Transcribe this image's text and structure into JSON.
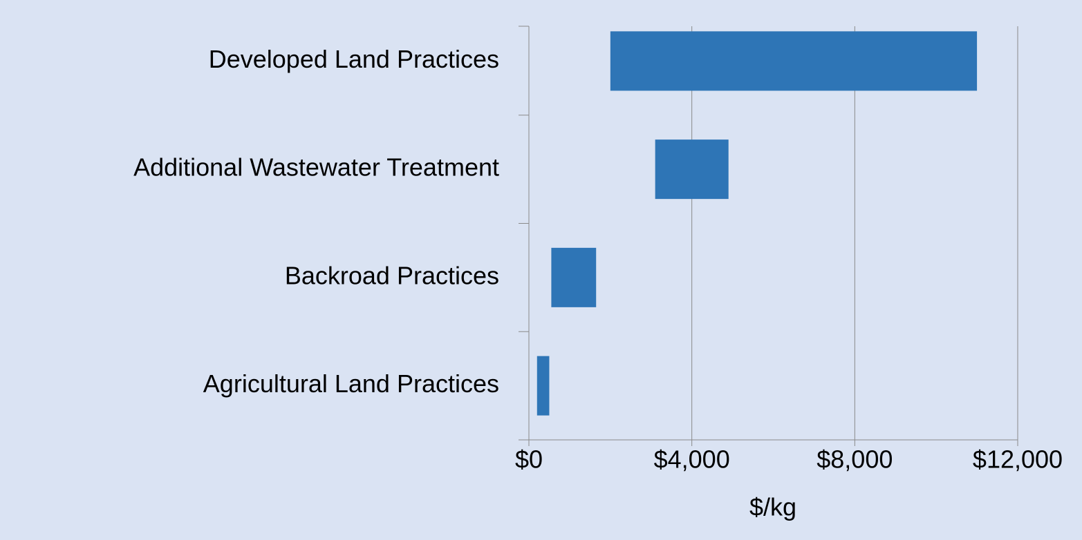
{
  "chart_data": {
    "type": "bar",
    "orientation": "horizontal",
    "categories": [
      "Developed Land Practices",
      "Additional Wastewater Treatment",
      "Backroad Practices",
      "Agricultural Land Practices"
    ],
    "starts": [
      2000,
      3100,
      550,
      200
    ],
    "ends": [
      11000,
      4900,
      1650,
      500
    ],
    "color": "#2e75b6",
    "xlabel": "$/kg",
    "xlim": [
      0,
      12000
    ],
    "xticks": [
      {
        "value": 0,
        "label": "$0"
      },
      {
        "value": 4000,
        "label": "$4,000"
      },
      {
        "value": 8000,
        "label": "$8,000"
      },
      {
        "value": 12000,
        "label": "$12,000"
      }
    ],
    "grid": true
  }
}
